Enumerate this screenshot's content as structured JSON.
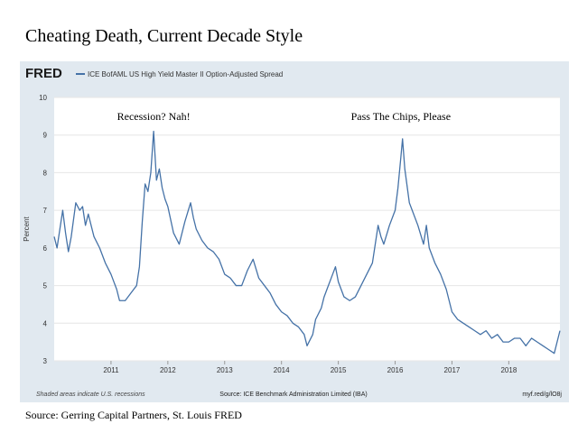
{
  "page": {
    "title": "Cheating Death, Current Decade Style",
    "caption": "Source: Gerring Capital Partners, St. Louis FRED"
  },
  "chart_data": {
    "type": "line",
    "brand": "FRED",
    "title": "ICE BofAML US High Yield Master II Option-Adjusted Spread",
    "y_label": "Percent",
    "footer_left": "Shaded areas indicate U.S. recessions",
    "footer_center": "Source: ICE Benchmark Administration Limited (IBA)",
    "footer_right": "myf.red/g/lO8j",
    "annotations": [
      {
        "text": "Recession?  Nah!",
        "x": 2011.75,
        "y": 9.5
      },
      {
        "text": "Pass The Chips, Please",
        "x": 2016.1,
        "y": 9.5
      }
    ],
    "xlim": [
      2010.0,
      2018.9
    ],
    "xticks": [
      2011,
      2012,
      2013,
      2014,
      2015,
      2016,
      2017,
      2018
    ],
    "ylim": [
      3,
      10
    ],
    "yticks": [
      3,
      4,
      5,
      6,
      7,
      8,
      9,
      10
    ],
    "grid": true,
    "x": [
      2010.0,
      2010.05,
      2010.1,
      2010.15,
      2010.2,
      2010.25,
      2010.3,
      2010.38,
      2010.45,
      2010.5,
      2010.55,
      2010.6,
      2010.7,
      2010.8,
      2010.9,
      2011.0,
      2011.1,
      2011.15,
      2011.25,
      2011.35,
      2011.45,
      2011.5,
      2011.55,
      2011.6,
      2011.65,
      2011.7,
      2011.75,
      2011.8,
      2011.85,
      2011.9,
      2011.95,
      2012.0,
      2012.1,
      2012.2,
      2012.3,
      2012.4,
      2012.45,
      2012.5,
      2012.6,
      2012.7,
      2012.8,
      2012.9,
      2013.0,
      2013.1,
      2013.2,
      2013.3,
      2013.4,
      2013.5,
      2013.6,
      2013.7,
      2013.8,
      2013.9,
      2014.0,
      2014.1,
      2014.2,
      2014.3,
      2014.4,
      2014.45,
      2014.55,
      2014.6,
      2014.7,
      2014.75,
      2014.8,
      2014.9,
      2014.95,
      2015.0,
      2015.1,
      2015.2,
      2015.3,
      2015.4,
      2015.5,
      2015.6,
      2015.7,
      2015.75,
      2015.8,
      2015.9,
      2016.0,
      2016.05,
      2016.1,
      2016.13,
      2016.17,
      2016.25,
      2016.3,
      2016.4,
      2016.5,
      2016.55,
      2016.6,
      2016.7,
      2016.8,
      2016.9,
      2017.0,
      2017.1,
      2017.2,
      2017.3,
      2017.4,
      2017.5,
      2017.6,
      2017.7,
      2017.8,
      2017.9,
      2018.0,
      2018.1,
      2018.2,
      2018.3,
      2018.4,
      2018.5,
      2018.6,
      2018.7,
      2018.8,
      2018.85,
      2018.9
    ],
    "series": [
      {
        "name": "ICE BofAML US High Yield Master II Option-Adjusted Spread",
        "color": "#4572a7",
        "values": [
          6.3,
          6.0,
          6.5,
          7.0,
          6.4,
          5.9,
          6.3,
          7.2,
          7.0,
          7.1,
          6.6,
          6.9,
          6.3,
          6.0,
          5.6,
          5.3,
          4.9,
          4.6,
          4.6,
          4.8,
          5.0,
          5.5,
          6.7,
          7.7,
          7.5,
          8.0,
          9.1,
          7.8,
          8.1,
          7.6,
          7.3,
          7.1,
          6.4,
          6.1,
          6.7,
          7.2,
          6.8,
          6.5,
          6.2,
          6.0,
          5.9,
          5.7,
          5.3,
          5.2,
          5.0,
          5.0,
          5.4,
          5.7,
          5.2,
          5.0,
          4.8,
          4.5,
          4.3,
          4.2,
          4.0,
          3.9,
          3.7,
          3.4,
          3.7,
          4.1,
          4.4,
          4.7,
          4.9,
          5.3,
          5.5,
          5.1,
          4.7,
          4.6,
          4.7,
          5.0,
          5.3,
          5.6,
          6.6,
          6.3,
          6.1,
          6.6,
          7.0,
          7.6,
          8.4,
          8.9,
          8.1,
          7.2,
          7.0,
          6.6,
          6.1,
          6.6,
          6.0,
          5.6,
          5.3,
          4.9,
          4.3,
          4.1,
          4.0,
          3.9,
          3.8,
          3.7,
          3.8,
          3.6,
          3.7,
          3.5,
          3.5,
          3.6,
          3.6,
          3.4,
          3.6,
          3.5,
          3.4,
          3.3,
          3.2,
          3.5,
          3.8
        ]
      }
    ]
  }
}
